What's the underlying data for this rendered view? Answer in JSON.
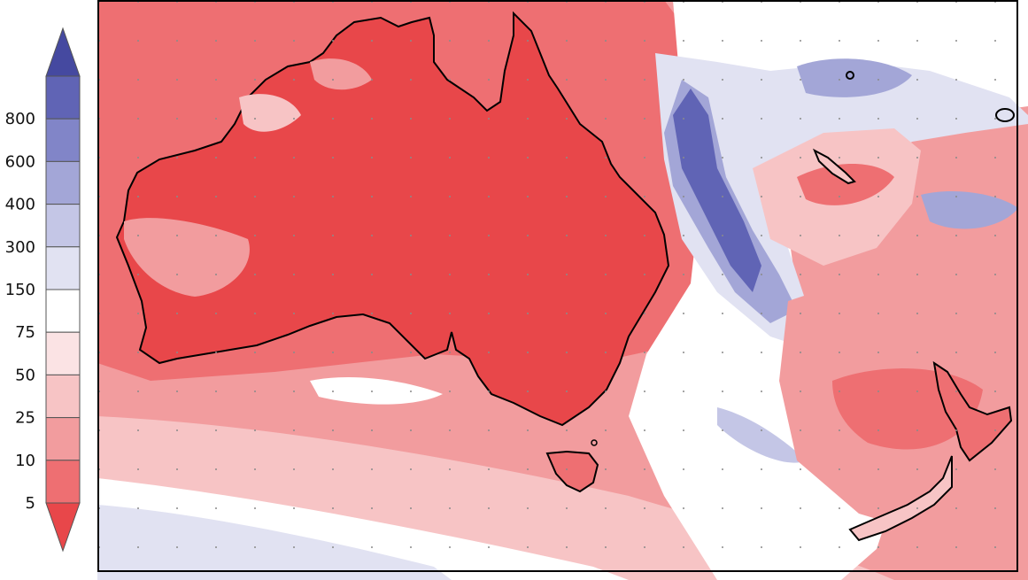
{
  "colorbar": {
    "colors": [
      "#e8474a",
      "#ee6f72",
      "#f29c9e",
      "#f7c4c5",
      "#fbe3e4",
      "#ffffff",
      "#e1e2f2",
      "#c4c6e6",
      "#a3a6d7",
      "#8185c8",
      "#6064b5",
      "#4549a0"
    ],
    "ticks": [
      "5",
      "10",
      "25",
      "50",
      "75",
      "150",
      "300",
      "400",
      "600",
      "800"
    ]
  },
  "map": {
    "region": "Australia and New Zealand",
    "coastline_color": "#000000",
    "gridline_style": "dotted"
  }
}
